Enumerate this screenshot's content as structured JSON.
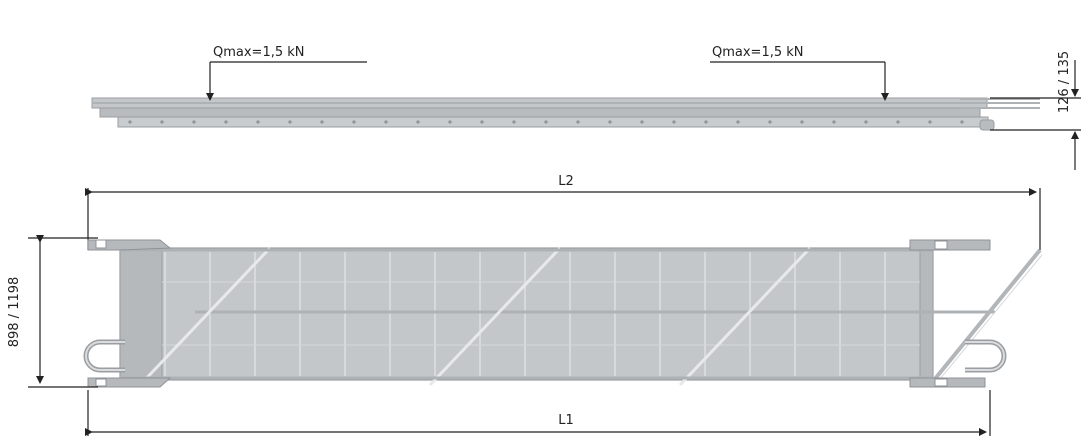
{
  "labels": {
    "load_left": "Qmax=1,5 kN",
    "load_right": "Qmax=1,5 kN",
    "height_dim": "126 / 135",
    "width_dim": "898 / 1198",
    "length_l2": "L2",
    "length_l1": "L1"
  },
  "colors": {
    "steel_light": "#c4c7ca",
    "steel_dark": "#a9adb0",
    "dimension_line": "#222222"
  }
}
